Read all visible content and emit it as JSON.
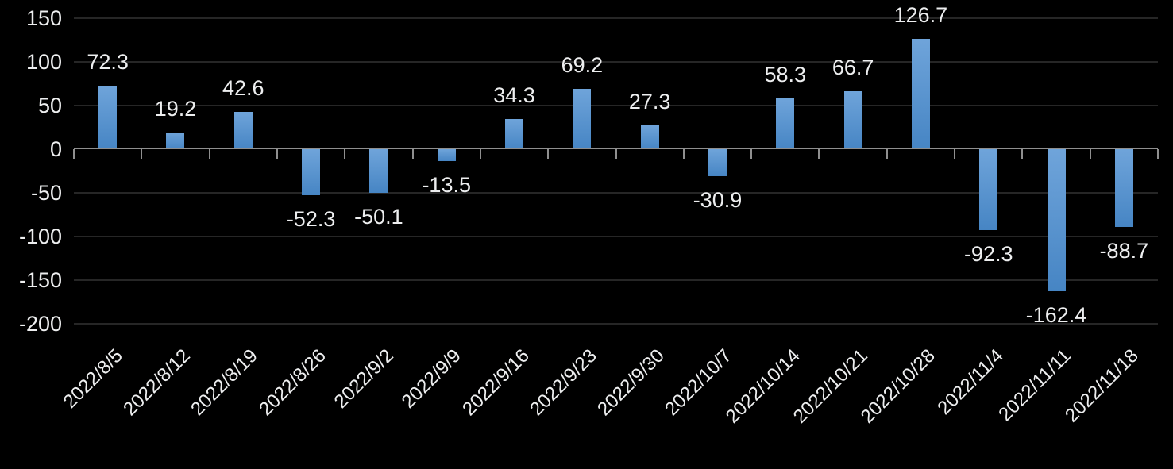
{
  "chart_data": {
    "type": "bar",
    "categories": [
      "2022/8/5",
      "2022/8/12",
      "2022/8/19",
      "2022/8/26",
      "2022/9/2",
      "2022/9/9",
      "2022/9/16",
      "2022/9/23",
      "2022/9/30",
      "2022/10/7",
      "2022/10/14",
      "2022/10/21",
      "2022/10/28",
      "2022/11/4",
      "2022/11/11",
      "2022/11/18"
    ],
    "values": [
      72.3,
      19.2,
      42.6,
      -52.3,
      -50.1,
      -13.5,
      34.3,
      69.2,
      27.3,
      -30.9,
      58.3,
      66.7,
      126.7,
      -92.3,
      -162.4,
      -88.7
    ],
    "data_labels": [
      "72.3",
      "19.2",
      "42.6",
      "-52.3",
      "-50.1",
      "-13.5",
      "34.3",
      "69.2",
      "27.3",
      "-30.9",
      "58.3",
      "66.7",
      "126.7",
      "-92.3",
      "-162.4",
      "-88.7"
    ],
    "yticks": [
      150,
      100,
      50,
      0,
      -50,
      -100,
      -150,
      -200
    ],
    "ylim": [
      -200,
      150
    ],
    "xlabel": "",
    "ylabel": "",
    "grid": true,
    "legend": false,
    "x_tick_label_rotation_deg": 45,
    "colors": {
      "background": "#000000",
      "bar_top": "#6fa4da",
      "bar_bottom": "#4685c4",
      "gridline": "#262626",
      "axis": "#8f8f8f",
      "text": "#edeeef"
    }
  }
}
